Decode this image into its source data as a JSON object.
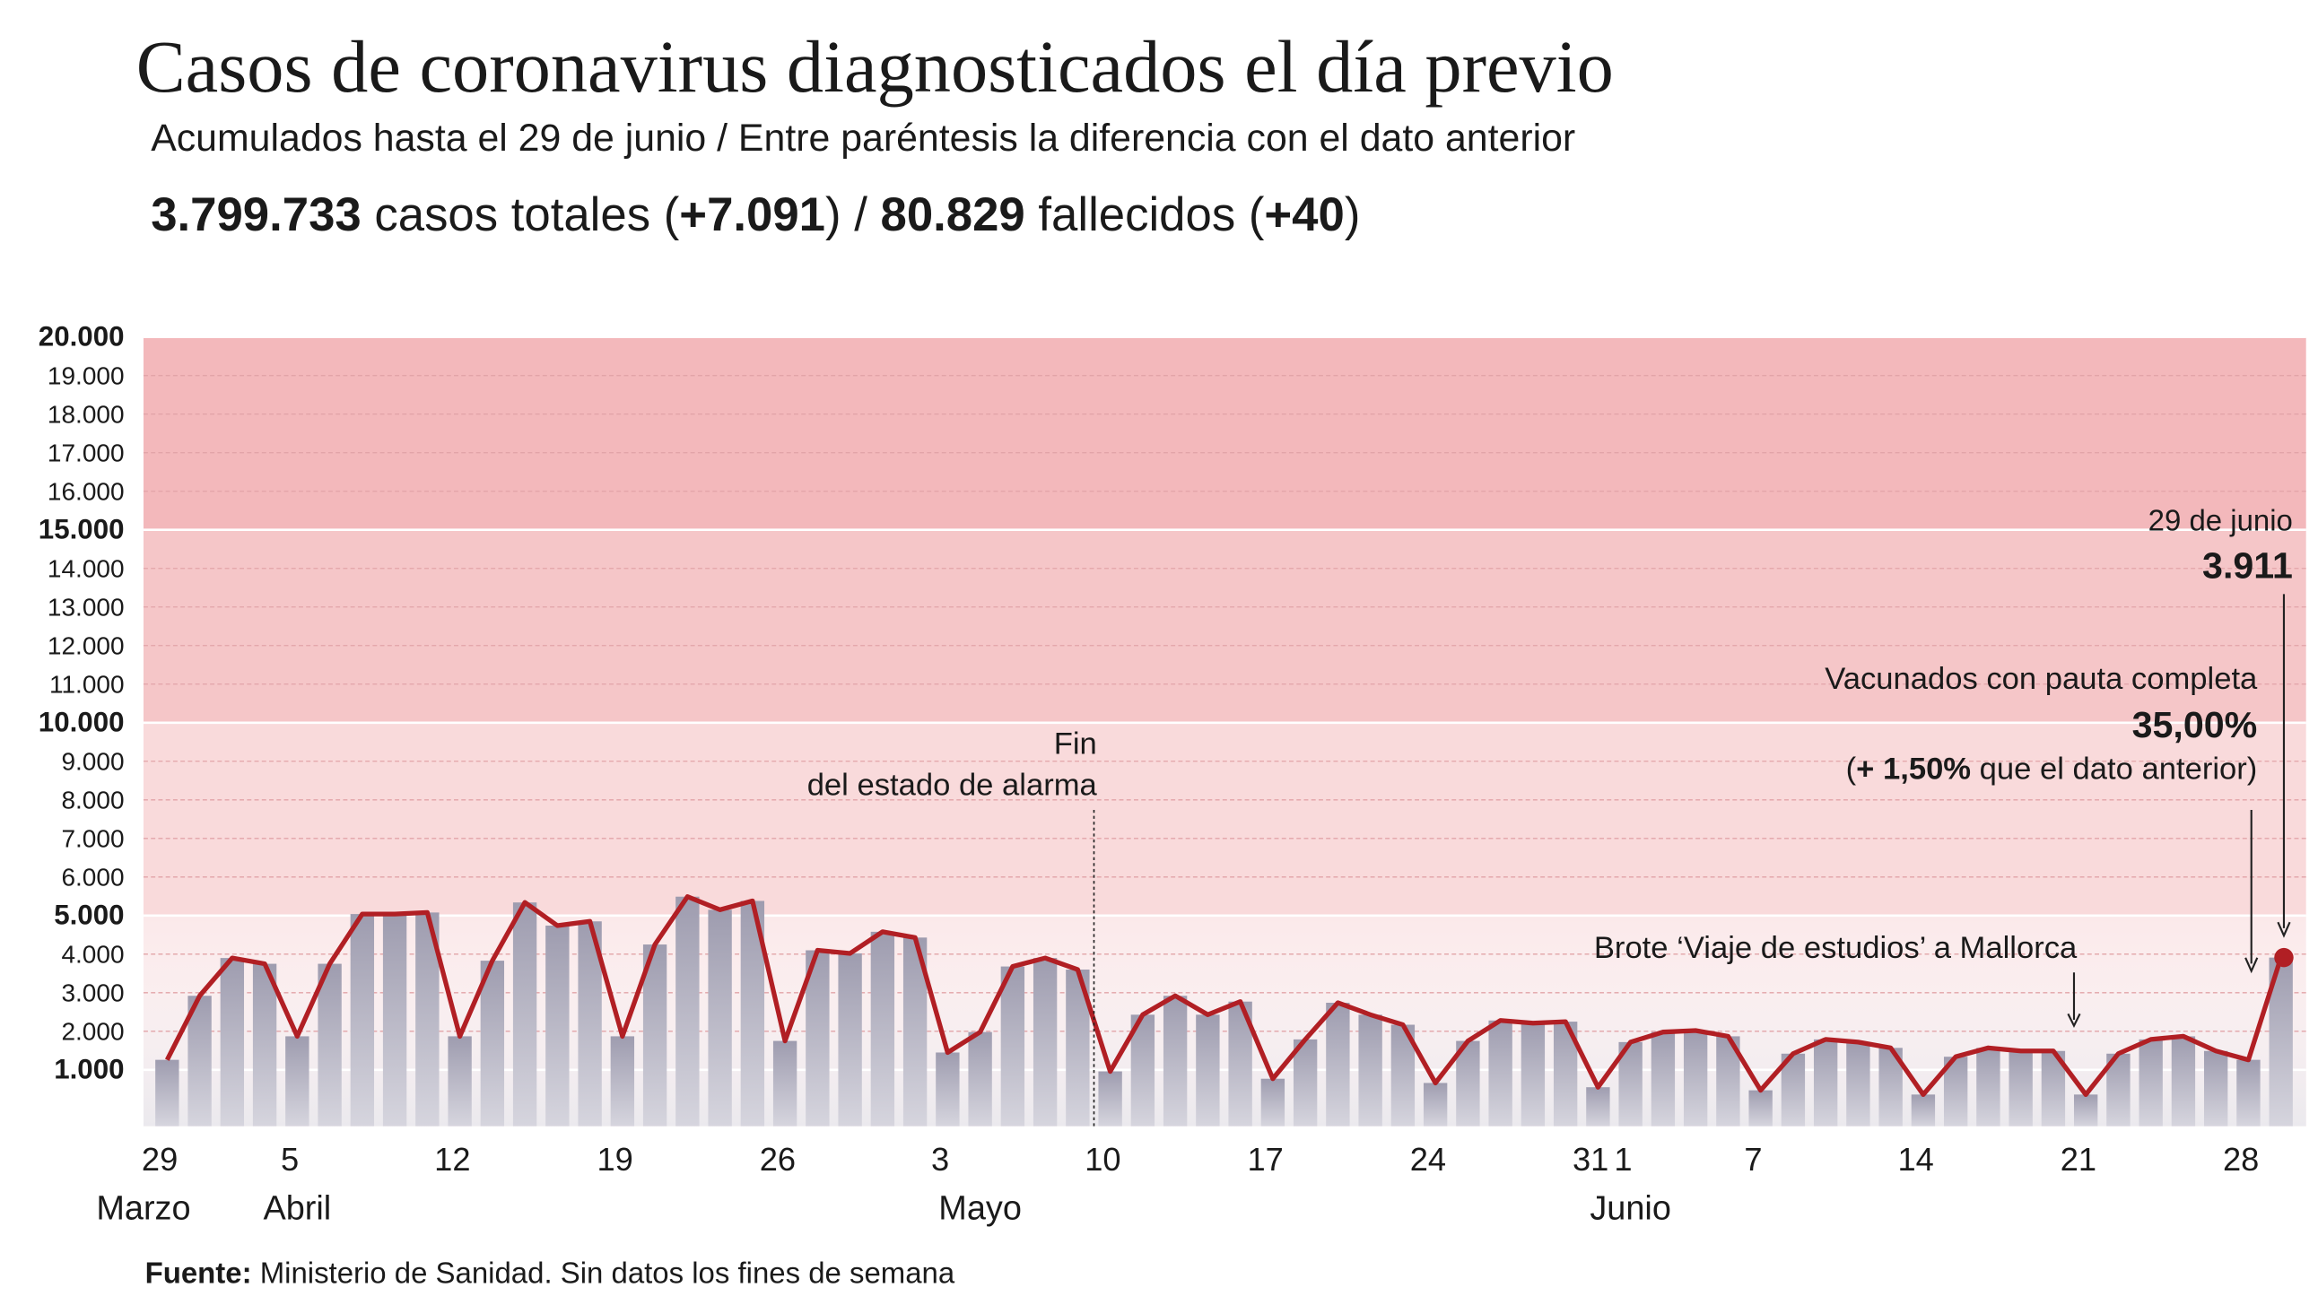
{
  "chart_data": {
    "type": "bar-line",
    "title": "Casos de coronavirus diagnosticados el día previo",
    "subtitle": "Acumulados hasta el 29 de junio / Entre paréntesis la diferencia con el dato anterior",
    "summary": [
      {
        "text": "3.799.733",
        "bold": true
      },
      {
        "text": " casos totales (",
        "bold": false
      },
      {
        "text": "+7.091",
        "bold": true
      },
      {
        "text": ") / ",
        "bold": false
      },
      {
        "text": "80.829",
        "bold": true
      },
      {
        "text": " fallecidos (",
        "bold": false
      },
      {
        "text": "+40",
        "bold": true
      },
      {
        "text": ")",
        "bold": false
      }
    ],
    "categories": [
      "29",
      null,
      null,
      null,
      "5",
      null,
      null,
      null,
      null,
      "12",
      null,
      null,
      null,
      null,
      "19",
      null,
      null,
      null,
      null,
      "26",
      null,
      null,
      null,
      null,
      "3",
      null,
      null,
      null,
      null,
      "10",
      null,
      null,
      null,
      null,
      "17",
      null,
      null,
      null,
      null,
      "24",
      null,
      null,
      null,
      null,
      "31",
      "1",
      null,
      null,
      null,
      "7",
      null,
      null,
      null,
      null,
      "14",
      null,
      null,
      null,
      null,
      "21",
      null,
      null,
      null,
      null,
      "28",
      null
    ],
    "month_labels": [
      "Marzo",
      null,
      null,
      null,
      "Abril",
      null,
      null,
      null,
      null,
      null,
      null,
      null,
      null,
      null,
      null,
      null,
      null,
      null,
      null,
      null,
      null,
      null,
      null,
      null,
      null,
      "Mayo",
      null,
      null,
      null,
      null,
      null,
      null,
      null,
      null,
      null,
      null,
      null,
      null,
      null,
      null,
      null,
      null,
      null,
      null,
      null,
      "Junio",
      null,
      null,
      null,
      null,
      null,
      null,
      null,
      null,
      null,
      null,
      null,
      null,
      null,
      null,
      null,
      null,
      null,
      null,
      null,
      null
    ],
    "series": [
      {
        "color": "#b11f24",
        "bar_color": "#a3a1b3",
        "values": [
          1260,
          2920,
          3900,
          3750,
          1870,
          3750,
          5040,
          5040,
          5080,
          1870,
          3830,
          5340,
          4740,
          4850,
          1870,
          4250,
          5490,
          5150,
          5380,
          1750,
          4100,
          4020,
          4580,
          4430,
          1450,
          1980,
          3680,
          3900,
          3600,
          960,
          2430,
          2920,
          2430,
          2770,
          770,
          1790,
          2740,
          2430,
          2170,
          660,
          1750,
          2280,
          2210,
          2250,
          550,
          1720,
          1980,
          2020,
          1870,
          470,
          1420,
          1790,
          1720,
          1570,
          360,
          1340,
          1570,
          1490,
          1490,
          360,
          1420,
          1790,
          1870,
          1490,
          1260,
          3911
        ],
        "value_labels": [
          null,
          null,
          null,
          null,
          null,
          null,
          null,
          null,
          null,
          null,
          null,
          null,
          null,
          null,
          null,
          null,
          null,
          null,
          null,
          null,
          null,
          null,
          null,
          null,
          null,
          null,
          null,
          null,
          null,
          null,
          null,
          null,
          null,
          null,
          null,
          null,
          null,
          null,
          null,
          null,
          null,
          null,
          null,
          null,
          null,
          null,
          null,
          null,
          null,
          null,
          null,
          null,
          null,
          null,
          null,
          null,
          null,
          null,
          null,
          null,
          null,
          null,
          null,
          null,
          null,
          "3.911"
        ]
      }
    ],
    "ylim": [
      0,
      20000
    ],
    "yticks": [
      {
        "value": 1000,
        "label": "1.000",
        "bold": true
      },
      {
        "value": 2000,
        "label": "2.000"
      },
      {
        "value": 3000,
        "label": "3.000"
      },
      {
        "value": 4000,
        "label": "4.000"
      },
      {
        "value": 5000,
        "label": "5.000",
        "bold": true
      },
      {
        "value": 6000,
        "label": "6.000"
      },
      {
        "value": 7000,
        "label": "7.000"
      },
      {
        "value": 8000,
        "label": "8.000"
      },
      {
        "value": 9000,
        "label": "9.000"
      },
      {
        "value": 10000,
        "label": "10.000",
        "bold": true
      },
      {
        "value": 11000,
        "label": "11.000"
      },
      {
        "value": 12000,
        "label": "12.000"
      },
      {
        "value": 13000,
        "label": "13.000"
      },
      {
        "value": 14000,
        "label": "14.000"
      },
      {
        "value": 15000,
        "label": "15.000",
        "bold": true
      },
      {
        "value": 16000,
        "label": "16.000"
      },
      {
        "value": 17000,
        "label": "17.000"
      },
      {
        "value": 18000,
        "label": "18.000"
      },
      {
        "value": 19000,
        "label": "19.000"
      },
      {
        "value": 20000,
        "label": "20.000",
        "bold": true
      }
    ],
    "bands": [
      {
        "from": 0,
        "to": 5000,
        "color": "#fbe9ea"
      },
      {
        "from": 5000,
        "to": 10000,
        "color": "#f9dadb"
      },
      {
        "from": 10000,
        "to": 15000,
        "color": "#f5c6c8"
      },
      {
        "from": 15000,
        "to": 20000,
        "color": "#f3b8bb"
      }
    ],
    "grid": true,
    "annotations": {
      "alarm": [
        "Fin",
        "del estado de alarma"
      ],
      "date": "29 de junio",
      "vaccine_title": "Vacunados con pauta completa",
      "vaccine_value": "35,00%",
      "vaccine_note": [
        {
          "text": "(",
          "bold": false
        },
        {
          "text": "+ 1,50%",
          "bold": true
        },
        {
          "text": " que el dato anterior)",
          "bold": false
        }
      ],
      "outbreak": "Brote ‘Viaje de estudios’ a Mallorca"
    },
    "source": [
      {
        "text": "Fuente:",
        "bold": true
      },
      {
        "text": " Ministerio de Sanidad. Sin datos los fines de semana",
        "bold": false
      }
    ]
  }
}
